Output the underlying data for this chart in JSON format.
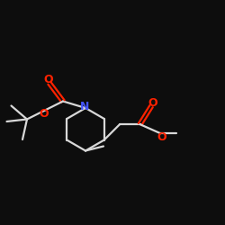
{
  "bg": "#0d0d0d",
  "bc": "#d8d8d8",
  "nc": "#4455ff",
  "oc": "#ff2200",
  "lw": 1.6,
  "off": 0.006,
  "fs": 9,
  "xlim": [
    0.0,
    1.0
  ],
  "ylim": [
    0.0,
    1.0
  ]
}
